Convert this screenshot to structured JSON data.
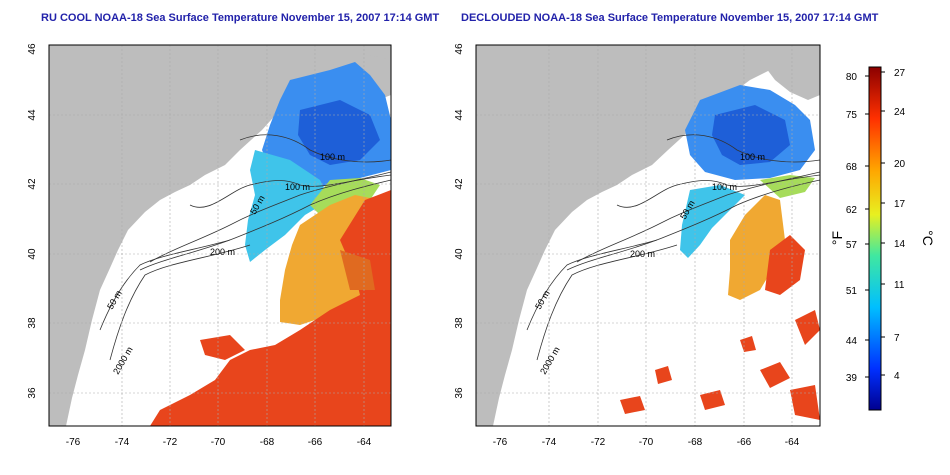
{
  "titles": {
    "left": "RU COOL NOAA-18 Sea Surface Temperature November 15, 2007 17:14 GMT",
    "right": "DECLOUDED NOAA-18 Sea Surface Temperature November 15, 2007 17:14 GMT"
  },
  "map_axes": {
    "lon_ticks": [
      "-76",
      "-74",
      "-72",
      "-70",
      "-68",
      "-66",
      "-64"
    ],
    "lat_ticks": [
      "36",
      "38",
      "40",
      "42",
      "44",
      "46"
    ]
  },
  "contour_labels": {
    "left": [
      "100 m",
      "100 m",
      "50 m",
      "200 m",
      "50 m",
      "2000 m"
    ],
    "right": [
      "100 m",
      "100 m",
      "50 m",
      "200 m",
      "50 m",
      "2000 m"
    ]
  },
  "colorbar": {
    "fahrenheit_ticks": [
      "80",
      "75",
      "68",
      "62",
      "57",
      "51",
      "44",
      "39"
    ],
    "celsius_ticks": [
      "27",
      "24",
      "20",
      "17",
      "14",
      "11",
      "7",
      "4"
    ],
    "unit_f": "°F",
    "unit_c": "°C",
    "colors": [
      "#00008f",
      "#0040ff",
      "#00bfff",
      "#40ff80",
      "#ffff00",
      "#ffa500",
      "#ff3000",
      "#8b0000"
    ]
  },
  "colors": {
    "land": "#bdbdbd",
    "cold_water": "#2f7fe8",
    "cool_water": "#2fc0e8",
    "mid_water": "#9de04a",
    "warm_water": "#f0a020",
    "hot_water": "#e8401a"
  }
}
